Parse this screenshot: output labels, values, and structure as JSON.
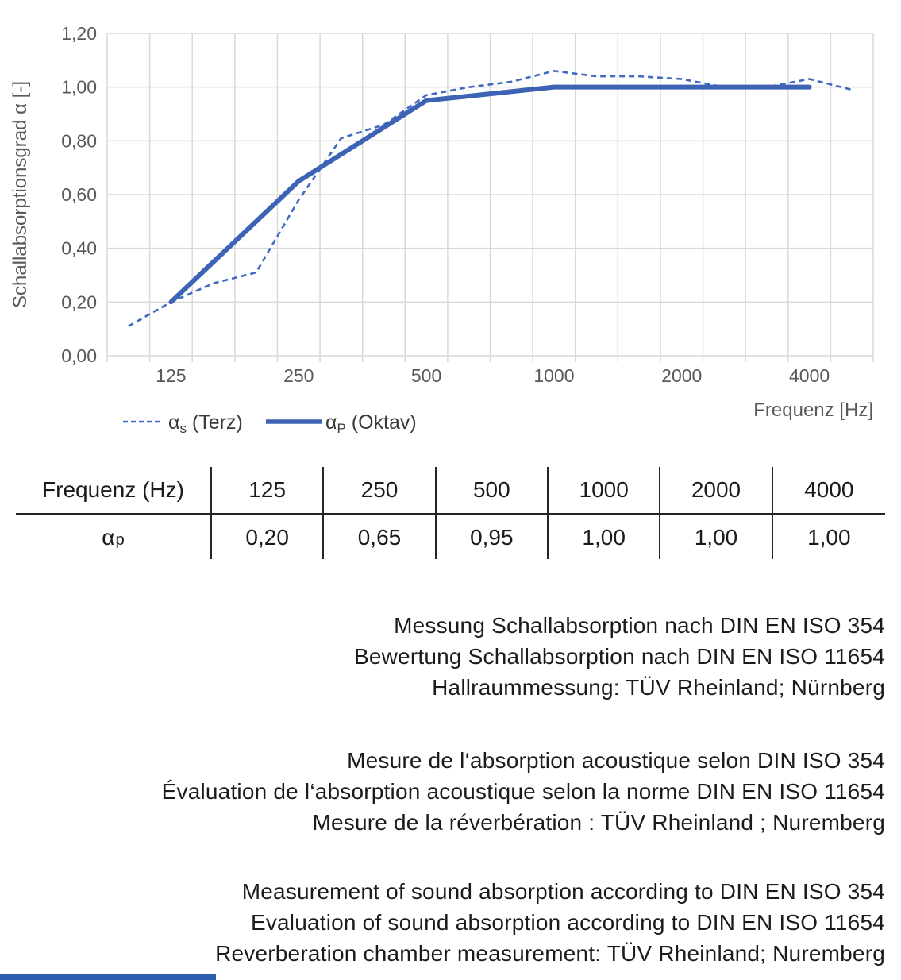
{
  "chart": {
    "y_axis_title": "Schallabsorptionsgrad α [-]",
    "x_axis_title": "Frequenz [Hz]",
    "colors": {
      "solid_line": "#3c63b4",
      "dashed_line": "#3f6ac0",
      "gridline": "#d9d9d9",
      "axis_text": "#595959",
      "legend_text": "#3a3a3a"
    },
    "legend": [
      {
        "style": "dashed",
        "alpha": "α",
        "sub": "s",
        "rest": " (Terz)"
      },
      {
        "style": "solid",
        "alpha": "α",
        "sub": "P",
        "rest": " (Oktav)"
      }
    ]
  },
  "chart_data": {
    "type": "line",
    "title": "",
    "xlabel": "Frequenz [Hz]",
    "ylabel": "Schallabsorptionsgrad α [-]",
    "x_scale": "third-octave log categories",
    "x_categories": [
      100,
      125,
      160,
      200,
      250,
      315,
      400,
      500,
      630,
      800,
      1000,
      1250,
      1600,
      2000,
      2500,
      3150,
      4000,
      5000
    ],
    "x_major_tick_labels": [
      "125",
      "250",
      "500",
      "1000",
      "2000",
      "4000"
    ],
    "x_major_tick_freqs": [
      125,
      250,
      500,
      1000,
      2000,
      4000
    ],
    "ylim": [
      0,
      1.2
    ],
    "y_tick_step": 0.2,
    "y_tick_labels": [
      "0,00",
      "0,20",
      "0,40",
      "0,60",
      "0,80",
      "1,00",
      "1,20"
    ],
    "grid": true,
    "legend_position": "bottom-left",
    "series": [
      {
        "name": "αs (Terz)",
        "style": "dashed",
        "x": [
          100,
          125,
          160,
          200,
          250,
          315,
          400,
          500,
          630,
          800,
          1000,
          1250,
          1600,
          2000,
          2500,
          3150,
          4000,
          5000
        ],
        "y": [
          0.11,
          0.2,
          0.27,
          0.31,
          0.58,
          0.81,
          0.86,
          0.97,
          1.0,
          1.02,
          1.06,
          1.04,
          1.04,
          1.03,
          1.0,
          1.0,
          1.03,
          0.99
        ]
      },
      {
        "name": "αP (Oktav)",
        "style": "solid",
        "x": [
          125,
          250,
          500,
          1000,
          2000,
          4000
        ],
        "y": [
          0.2,
          0.65,
          0.95,
          1.0,
          1.0,
          1.0
        ]
      }
    ]
  },
  "table": {
    "header": [
      "Frequenz (Hz)",
      "125",
      "250",
      "500",
      "1000",
      "2000",
      "4000"
    ],
    "row_label": {
      "alpha": "α",
      "sub": "p"
    },
    "values": [
      "0,20",
      "0,65",
      "0,95",
      "1,00",
      "1,00",
      "1,00"
    ]
  },
  "notes": {
    "de": {
      "lines": [
        "Messung Schallabsorption nach DIN EN ISO 354",
        "Bewertung Schallabsorption nach DIN EN ISO 11654",
        "Hallraummessung: TÜV Rheinland; Nürnberg"
      ]
    },
    "fr": {
      "lines": [
        "Mesure de l‘absorption acoustique selon DIN ISO 354",
        "Évaluation de l‘absorption acoustique selon la norme DIN EN ISO 11654",
        "Mesure de la réverbération : TÜV Rheinland ; Nuremberg"
      ]
    },
    "en": {
      "lines": [
        "Measurement of sound absorption according to DIN EN ISO 354",
        "Evaluation of sound absorption according to DIN EN ISO 11654",
        "Reverberation chamber measurement: TÜV Rheinland; Nuremberg"
      ]
    }
  },
  "footer": {
    "accent_color": "#2b5cad"
  }
}
